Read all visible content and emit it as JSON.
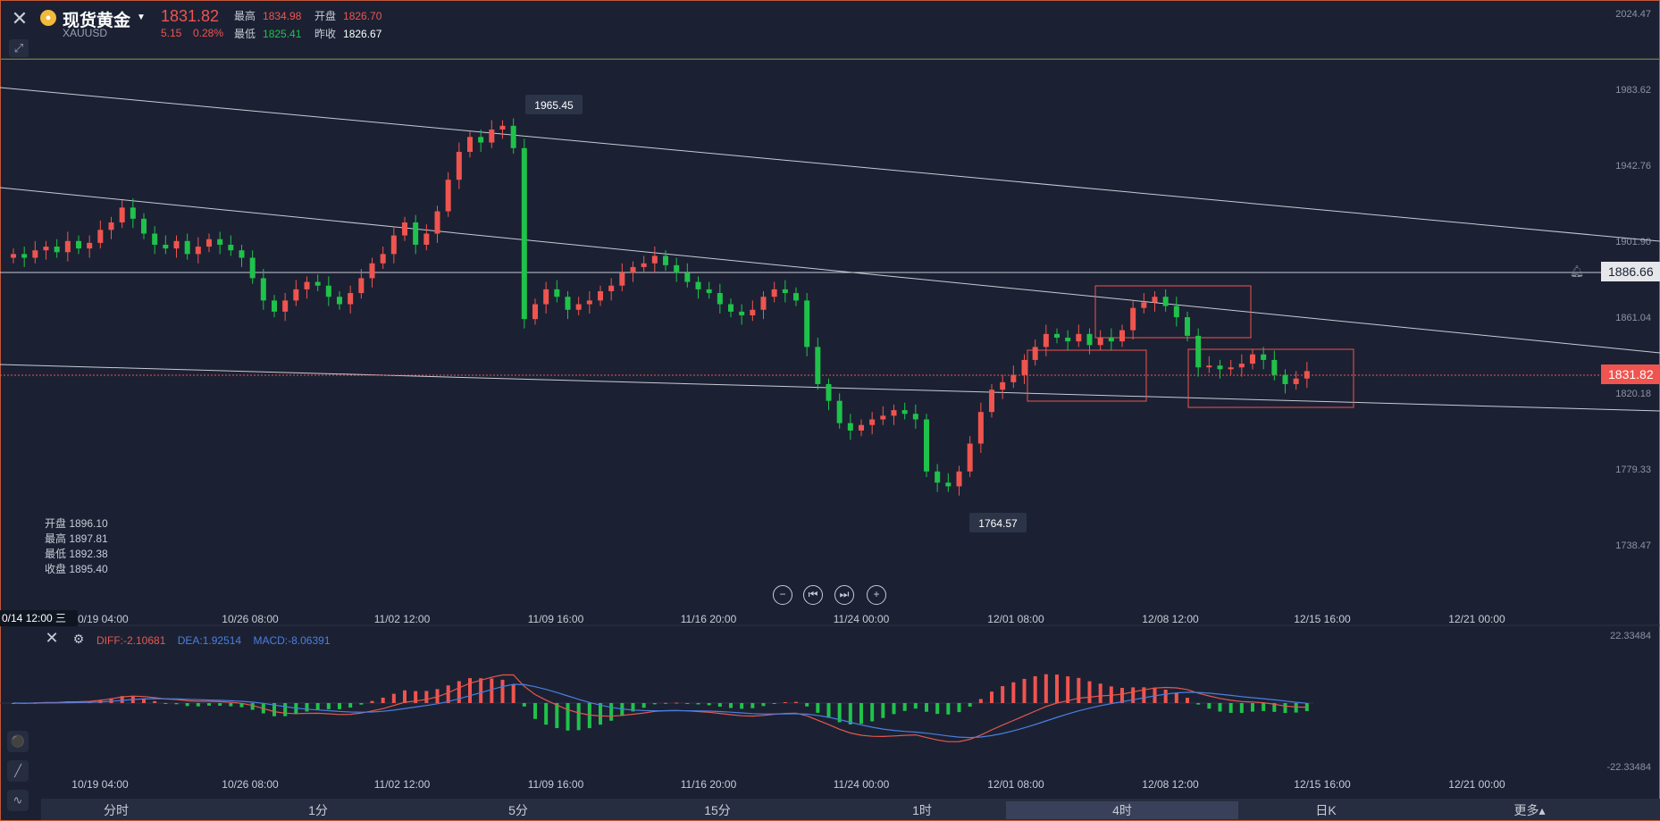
{
  "header": {
    "symbol_name": "现货黄金",
    "symbol_code": "XAUUSD",
    "price": "1831.82",
    "change": "5.15",
    "change_pct": "0.28%",
    "high_label": "最高",
    "high": "1834.98",
    "open_label": "开盘",
    "open": "1826.70",
    "low_label": "最低",
    "low": "1825.41",
    "prev_close_label": "昨收",
    "prev_close": "1826.67"
  },
  "ohlc_box": {
    "open": "开盘 1896.10",
    "high": "最高 1897.81",
    "low": "最低 1892.38",
    "close": "收盘 1895.40"
  },
  "price_axis": [
    "2024.47",
    "1983.62",
    "1942.76",
    "1901.90",
    "1861.04",
    "1820.18",
    "1779.33",
    "1738.47"
  ],
  "price_tags": {
    "level": "1886.66",
    "current": "1831.82"
  },
  "annotations": {
    "peak": "1965.45",
    "trough": "1764.57"
  },
  "date_axis": [
    "10/19 04:00",
    "10/26 08:00",
    "11/02 12:00",
    "11/09 16:00",
    "11/16 20:00",
    "11/24 00:00",
    "12/01 08:00",
    "12/08 12:00",
    "12/15 16:00",
    "12/21 00:00"
  ],
  "date_marker": "0/14 12:00 三",
  "macd": {
    "diff": "DIFF:-2.10681",
    "dea": "DEA:1.92514",
    "macd": "MACD:-8.06391",
    "axis_top": "22.33484",
    "axis_bottom": "-22.33484"
  },
  "periods": [
    "分时",
    "1分",
    "5分",
    "15分",
    "1时",
    "4时",
    "日K",
    "更多▴"
  ],
  "active_period": "4时",
  "colors": {
    "up": "#f0544f",
    "down": "#1fc24a",
    "diff": "#e4584e",
    "dea": "#4a7fe0",
    "bg": "#1b2133"
  },
  "chart_data": {
    "type": "candlestick",
    "title": "现货黄金 XAUUSD",
    "timeframe": "4时",
    "x_ticks": [
      "10/19 04:00",
      "10/26 08:00",
      "11/02 12:00",
      "11/09 16:00",
      "11/16 20:00",
      "11/24 00:00",
      "12/01 08:00",
      "12/08 12:00",
      "12/15 16:00",
      "12/21 00:00"
    ],
    "ylim": [
      1718,
      2045
    ],
    "close_series": [
      1895,
      1893,
      1897,
      1899,
      1896,
      1902,
      1898,
      1901,
      1908,
      1912,
      1920,
      1914,
      1906,
      1900,
      1898,
      1902,
      1895,
      1899,
      1903,
      1900,
      1897,
      1893,
      1882,
      1870,
      1864,
      1870,
      1876,
      1880,
      1878,
      1872,
      1868,
      1874,
      1882,
      1890,
      1895,
      1905,
      1912,
      1900,
      1906,
      1918,
      1935,
      1950,
      1958,
      1955,
      1962,
      1964,
      1952,
      1860,
      1868,
      1876,
      1872,
      1865,
      1868,
      1870,
      1875,
      1878,
      1885,
      1888,
      1890,
      1894,
      1889,
      1885,
      1880,
      1876,
      1874,
      1868,
      1864,
      1862,
      1865,
      1872,
      1876,
      1874,
      1870,
      1845,
      1825,
      1816,
      1804,
      1800,
      1803,
      1806,
      1808,
      1811,
      1809,
      1806,
      1778,
      1772,
      1770,
      1778,
      1793,
      1810,
      1822,
      1826,
      1830,
      1838,
      1845,
      1852,
      1850,
      1848,
      1852,
      1846,
      1850,
      1848,
      1854,
      1866,
      1869,
      1872,
      1867,
      1861,
      1851,
      1834,
      1835,
      1833,
      1834,
      1836,
      1841,
      1838,
      1830,
      1825,
      1828,
      1832
    ]
  }
}
